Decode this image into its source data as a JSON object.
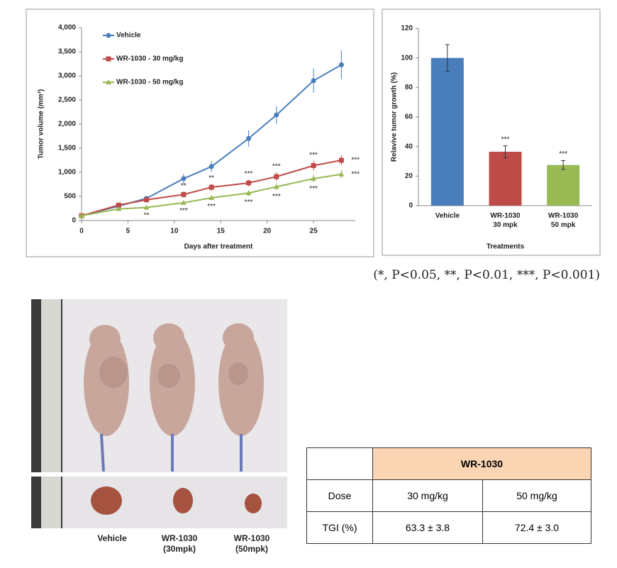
{
  "chart_data": [
    {
      "type": "line",
      "ylabel": "Tumor volume (mm³)",
      "xlabel": "Days after treatment",
      "x": [
        0,
        4,
        7,
        11,
        14,
        18,
        21,
        25,
        28
      ],
      "xlim": [
        0,
        29.5
      ],
      "xticks": [
        0,
        5,
        10,
        15,
        20,
        25
      ],
      "ylim": [
        0,
        4000
      ],
      "yticks": [
        0,
        500,
        {
          "value": 1000,
          "label": "1,000"
        },
        {
          "value": 1500,
          "label": "1,500"
        },
        {
          "value": 2000,
          "label": "2,000"
        },
        {
          "value": 2500,
          "label": "2,500"
        },
        {
          "value": 3000,
          "label": "3,000"
        },
        {
          "value": 3500,
          "label": "3,500"
        },
        {
          "value": 4000,
          "label": "4,000"
        }
      ],
      "legend": "upper left",
      "series": [
        {
          "name": "Vehicle",
          "color": "#4a7ebb",
          "marker": "circle",
          "values": [
            100,
            300,
            460,
            870,
            1120,
            1700,
            2190,
            2900,
            3230
          ],
          "errors": [
            0,
            30,
            40,
            100,
            110,
            170,
            180,
            250,
            300
          ]
        },
        {
          "name": "WR-1030 - 30 mg/kg",
          "color": "#be4b48",
          "marker": "square",
          "values": [
            100,
            320,
            430,
            540,
            690,
            780,
            910,
            1140,
            1250
          ],
          "errors": [
            0,
            30,
            40,
            60,
            70,
            70,
            90,
            100,
            100
          ],
          "significance": [
            null,
            null,
            null,
            "**",
            "**",
            "***",
            "***",
            "***",
            "***"
          ]
        },
        {
          "name": "WR-1030 - 50 mg/kg",
          "color": "#98b954",
          "marker": "triangle",
          "values": [
            100,
            240,
            270,
            370,
            470,
            570,
            700,
            870,
            960
          ],
          "errors": [
            0,
            20,
            30,
            40,
            50,
            60,
            70,
            80,
            90
          ],
          "significance": [
            null,
            null,
            "**",
            "***",
            "***",
            "***",
            "***",
            "***",
            "***"
          ]
        }
      ]
    },
    {
      "type": "bar",
      "ylabel": "Relavive tumor growth (%)",
      "xlabel": "Treatments",
      "categories": [
        "Vehicle",
        "WR-1030\n30 mpk",
        "WR-1030\n50 mpk"
      ],
      "values": [
        100,
        36.5,
        27.5
      ],
      "errors": [
        9,
        4,
        3
      ],
      "significance": [
        null,
        "***",
        "***"
      ],
      "colors": [
        "#4a7ebb",
        "#be4b48",
        "#98b954"
      ],
      "ylim": [
        0,
        120
      ],
      "yticks": [
        0,
        20,
        40,
        60,
        80,
        100,
        120
      ]
    }
  ],
  "note": "(*, P<0.05, **, P<0.01, ***, P<0.001)",
  "photo": {
    "labels": [
      "Vehicle",
      "WR-1030\n(30mpk)",
      "WR-1030\n(50mpk)"
    ]
  },
  "table": {
    "group": "WR-1030",
    "rows": [
      [
        "Dose",
        "30 mg/kg",
        "50 mg/kg"
      ],
      [
        "TGI (%)",
        "63.3 ± 3.8",
        "72.4 ± 3.0"
      ]
    ]
  }
}
